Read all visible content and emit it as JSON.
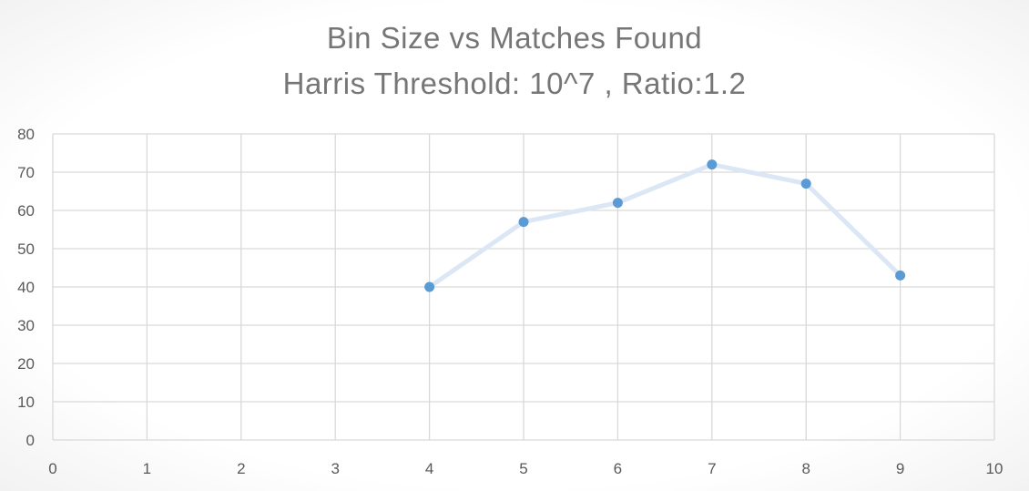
{
  "chart_data": {
    "type": "line",
    "title": "Bin Size vs Matches Found",
    "subtitle": "Harris Threshold: 10^7 , Ratio:1.2",
    "xlabel": "",
    "ylabel": "",
    "x": [
      4,
      5,
      6,
      7,
      8,
      9
    ],
    "series": [
      {
        "values": [
          40,
          57,
          62,
          72,
          67,
          43
        ]
      }
    ],
    "xlim": [
      0,
      10
    ],
    "ylim": [
      0,
      80
    ],
    "xticks": [
      "0",
      "1",
      "2",
      "3",
      "4",
      "5",
      "6",
      "7",
      "8",
      "9",
      "10"
    ],
    "yticks": [
      "0",
      "10",
      "20",
      "30",
      "40",
      "50",
      "60",
      "70",
      "80"
    ],
    "grid": true,
    "legend": "none",
    "colors": {
      "line": "#dbe7f5",
      "marker": "#5b9bd5",
      "grid": "#d9d9d9",
      "title": "#767676",
      "tick": "#595959"
    }
  }
}
